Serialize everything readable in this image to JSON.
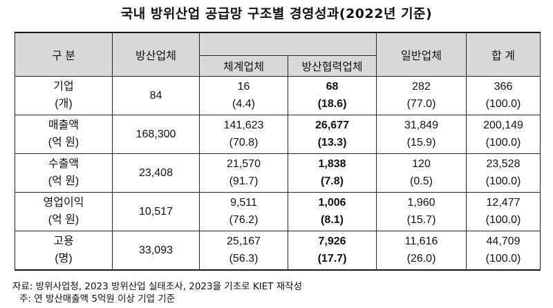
{
  "title": "국내 방위산업 공급망 구조별 경영성과(2022년 기준)",
  "headers": {
    "category": "구 분",
    "defense": "방산업체",
    "system": "체계업체",
    "partner": "방산협력업체",
    "general": "일반업체",
    "total": "합 계"
  },
  "rows": [
    {
      "label": "기업",
      "unit": "(개)",
      "defense": "84",
      "system": "16",
      "system_pct": "(4.4)",
      "partner": "68",
      "partner_pct": "(18.6)",
      "general": "282",
      "general_pct": "(77.0)",
      "total": "366",
      "total_pct": "(100.0)"
    },
    {
      "label": "매출액",
      "unit": "(억 원)",
      "defense": "168,300",
      "system": "141,623",
      "system_pct": "(70.8)",
      "partner": "26,677",
      "partner_pct": "(13.3)",
      "general": "31,849",
      "general_pct": "(15.9)",
      "total": "200,149",
      "total_pct": "(100.0)"
    },
    {
      "label": "수출액",
      "unit": "(억 원)",
      "defense": "23,408",
      "system": "21,570",
      "system_pct": "(91.7)",
      "partner": "1,838",
      "partner_pct": "(7.8)",
      "general": "120",
      "general_pct": "(0.5)",
      "total": "23,528",
      "total_pct": "(100.0)"
    },
    {
      "label": "영업이익",
      "unit": "(억 원)",
      "defense": "10,517",
      "system": "9,511",
      "system_pct": "(76.2)",
      "partner": "1,006",
      "partner_pct": "(8.1)",
      "general": "1,960",
      "general_pct": "(15.7)",
      "total": "12,477",
      "total_pct": "(100.0)"
    },
    {
      "label": "고용",
      "unit": "(명)",
      "defense": "33,093",
      "system": "25,167",
      "system_pct": "(56.3)",
      "partner": "7,926",
      "partner_pct": "(17.7)",
      "general": "11,616",
      "general_pct": "(26.0)",
      "total": "44,709",
      "total_pct": "(100.0)"
    }
  ],
  "notes": {
    "source": "자료: 방위사업청, 2023 방위산업 실태조사, 2023을 기초로 KIET 재작성",
    "note": "주: 연 방산매출액 5억원 이상 기업 기준"
  }
}
